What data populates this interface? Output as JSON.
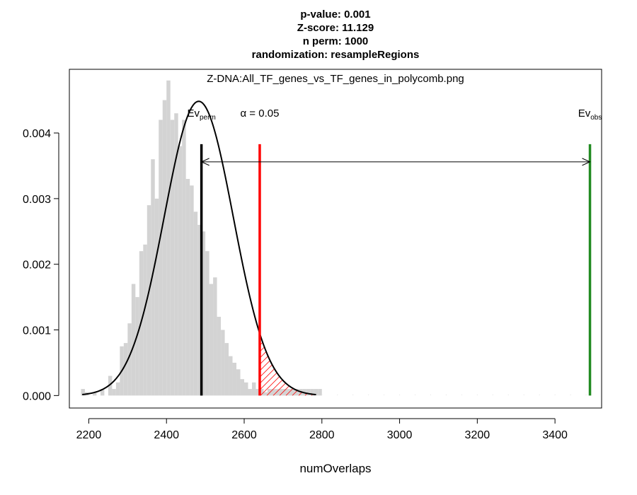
{
  "chart_data": {
    "type": "histogram",
    "title_lines": [
      "p-value:  0.001",
      "Z-score:  11.129",
      "n perm:  1000",
      "randomization:  resampleRegions"
    ],
    "subtitle": "Z-DNA:All_TF_genes_vs_TF_genes_in_polycomb.png",
    "xlabel": "numOverlaps",
    "ylabel": "",
    "xlim": [
      2150,
      3520
    ],
    "ylim": [
      -0.00019,
      0.00497
    ],
    "x_ticks": [
      2200,
      2400,
      2600,
      2800,
      3000,
      3200,
      3400
    ],
    "y_ticks": [
      0.0,
      0.001,
      0.002,
      0.003,
      0.004
    ],
    "y_tick_labels": [
      "0.000",
      "0.001",
      "0.002",
      "0.003",
      "0.004"
    ],
    "grid": false,
    "colors": {
      "histogram": "#d3d3d3",
      "density": "#000000",
      "ev_perm": "#000000",
      "alpha": "#ff0000",
      "ev_obs": "#228b22",
      "arrow": "#000000"
    },
    "histogram": {
      "bin_width": 10,
      "x_start": 2180,
      "densities": [
        0.0001,
        5e-05,
        0.0,
        5e-05,
        0.0,
        0.0001,
        0.0,
        0.0003,
        0.0001,
        0.0002,
        0.00075,
        0.0008,
        0.0011,
        0.0017,
        0.0015,
        0.0022,
        0.0023,
        0.0029,
        0.0036,
        0.003,
        0.0042,
        0.0045,
        0.0048,
        0.0042,
        0.0043,
        0.0038,
        0.0042,
        0.0033,
        0.0032,
        0.0028,
        0.0026,
        0.0025,
        0.0022,
        0.0017,
        0.0018,
        0.0012,
        0.001,
        0.0008,
        0.0006,
        0.0005,
        0.0004,
        0.00025,
        0.0002,
        0.0001,
        0.0002,
        0.0001,
        0.0001,
        5e-05,
        0.0001,
        0.0001,
        0.0001,
        0.0001,
        0.0001,
        0.0001,
        0.0001,
        0.0001,
        0.0001,
        0.0001,
        0.0001,
        0.0001,
        0.0001,
        0.0001
      ]
    },
    "density_curve": {
      "mean": 2483,
      "sd": 89,
      "x_range": [
        2183,
        2785
      ]
    },
    "ev_perm": {
      "x": 2490,
      "label_main": "Ev",
      "label_sub": "perm"
    },
    "alpha_line": {
      "x": 2640,
      "label": "α = 0.05"
    },
    "ev_obs": {
      "x": 3490,
      "label_main": "Ev",
      "label_sub": "obs"
    },
    "arrow": {
      "x_from": 2490,
      "x_to": 3490,
      "y": 0.00356
    },
    "vertical_line_top": 0.00383,
    "faint_dots_range": [
      2800,
      3480
    ]
  }
}
